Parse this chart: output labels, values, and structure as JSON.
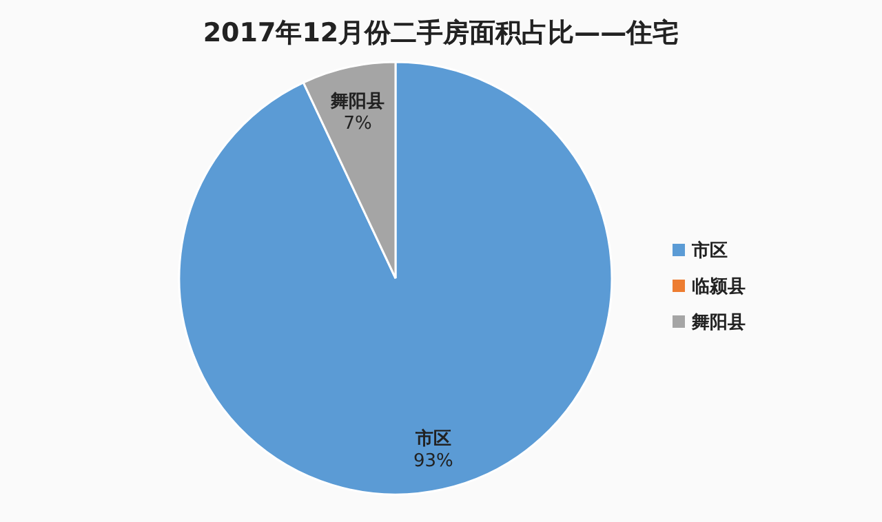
{
  "chart_data": {
    "type": "pie",
    "title": "2017年12月份二手房面积占比——住宅",
    "categories": [
      "市区",
      "临颍县",
      "舞阳县"
    ],
    "values": [
      93,
      0,
      7
    ],
    "colors": [
      "#5b9bd5",
      "#ed7d31",
      "#a5a5a5"
    ],
    "value_labels": [
      "93%",
      null,
      "7%"
    ],
    "legend": "right"
  }
}
